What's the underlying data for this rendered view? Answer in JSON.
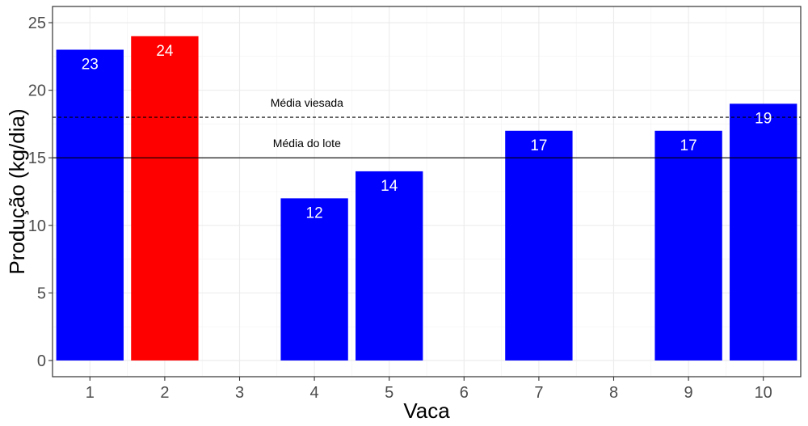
{
  "chart_data": {
    "type": "bar",
    "xlabel": "Vaca",
    "ylabel": "Produção (kg/dia)",
    "categories": [
      "1",
      "2",
      "3",
      "4",
      "5",
      "6",
      "7",
      "8",
      "9",
      "10"
    ],
    "bars": [
      {
        "x": 1,
        "value": 23,
        "label": "23",
        "color": "#0000ff"
      },
      {
        "x": 2,
        "value": 24,
        "label": "24",
        "color": "#ff0000"
      },
      {
        "x": 4,
        "value": 12,
        "label": "12",
        "color": "#0000ff"
      },
      {
        "x": 5,
        "value": 14,
        "label": "14",
        "color": "#0000ff"
      },
      {
        "x": 7,
        "value": 17,
        "label": "17",
        "color": "#0000ff"
      },
      {
        "x": 9,
        "value": 17,
        "label": "17",
        "color": "#0000ff"
      },
      {
        "x": 10,
        "value": 19,
        "label": "19",
        "color": "#0000ff"
      }
    ],
    "reference_lines": [
      {
        "label": "Média viesada",
        "value": 18,
        "style": "dashed"
      },
      {
        "label": "Média do lote",
        "value": 15,
        "style": "solid"
      }
    ],
    "y_ticks": [
      0,
      5,
      10,
      15,
      20,
      25
    ],
    "ylim": [
      -1.2,
      26.2
    ],
    "xlim": [
      0.5,
      10.5
    ],
    "grid": true,
    "legend": "none"
  }
}
